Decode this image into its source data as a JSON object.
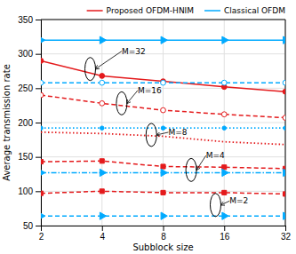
{
  "chart_data": {
    "type": "line",
    "xlabel": "Subblock size",
    "ylabel": "Average transmission rate",
    "x": [
      2,
      4,
      8,
      16,
      32
    ],
    "log": "x",
    "xlim": [
      2,
      32
    ],
    "ylim": [
      50,
      350
    ],
    "xticks": [
      2,
      4,
      8,
      16,
      32
    ],
    "yticks": [
      50,
      100,
      150,
      200,
      250,
      300,
      350
    ],
    "grid": true,
    "legend": "upper right",
    "series": [
      {
        "name": "Proposed OFDM-HNIM",
        "color": "#e41a1c",
        "marker": "circle",
        "line_style": "solid",
        "values": [
          290,
          268,
          260,
          252,
          245
        ]
      },
      {
        "name": "Classical OFDM",
        "color": "#00aaff",
        "marker": "triangle-right",
        "line_style": "solid",
        "values": [
          320,
          320,
          320,
          320,
          320
        ]
      },
      {
        "name": "Proposed OFDM-HNIM",
        "color": "#e41a1c",
        "marker": "circle-open",
        "line_style": "dashed",
        "values": [
          240,
          228,
          218,
          212,
          207
        ]
      },
      {
        "name": "Classical OFDM",
        "color": "#00aaff",
        "marker": "circle-open",
        "line_style": "dashed",
        "values": [
          258,
          258,
          258,
          258,
          258
        ]
      },
      {
        "name": "Proposed OFDM-HNIM",
        "color": "#e41a1c",
        "marker": "none",
        "line_style": "dotted",
        "values": [
          186,
          184,
          180,
          172,
          168
        ]
      },
      {
        "name": "Classical OFDM",
        "color": "#00aaff",
        "marker": "circle",
        "line_style": "dotted",
        "values": [
          192,
          192,
          192,
          192,
          192
        ]
      },
      {
        "name": "Proposed OFDM-HNIM",
        "color": "#e41a1c",
        "marker": "square",
        "line_style": "dashed",
        "values": [
          143,
          144,
          136,
          135,
          133
        ]
      },
      {
        "name": "Classical OFDM",
        "color": "#00aaff",
        "marker": "triangle-right",
        "line_style": "dashdot",
        "values": [
          127,
          127,
          127,
          127,
          127
        ]
      },
      {
        "name": "Proposed OFDM-HNIM",
        "color": "#e41a1c",
        "marker": "square",
        "line_style": "dashed",
        "values": [
          97,
          100,
          98,
          98,
          96
        ]
      },
      {
        "name": "Classical OFDM",
        "color": "#00aaff",
        "marker": "triangle-right",
        "line_style": "dashed",
        "values": [
          64,
          64,
          64,
          64,
          64
        ]
      }
    ],
    "annotations": [
      {
        "text": "M=32",
        "x": 3.5,
        "y": 278,
        "text_x": 5,
        "text_y": 300
      },
      {
        "text": "M=16",
        "x": 5,
        "y": 228,
        "text_x": 6,
        "text_y": 243
      },
      {
        "text": "M=8",
        "x": 7,
        "y": 182,
        "text_x": 8.5,
        "text_y": 182
      },
      {
        "text": "M=4",
        "x": 11,
        "y": 131,
        "text_x": 13,
        "text_y": 148
      },
      {
        "text": "M=2",
        "x": 14.5,
        "y": 80,
        "text_x": 17,
        "text_y": 82
      }
    ]
  }
}
